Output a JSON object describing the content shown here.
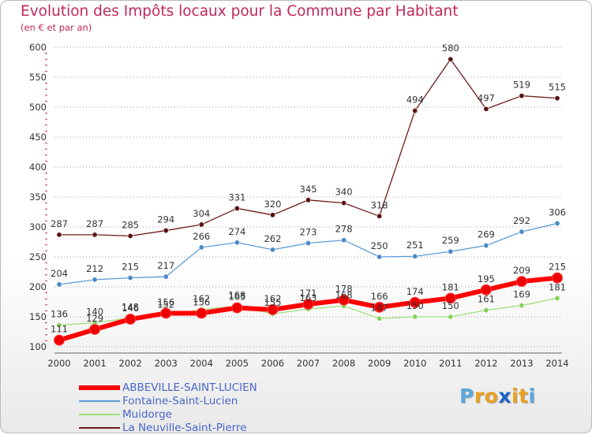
{
  "chart_data": {
    "type": "line",
    "title": "Evolution des Impôts locaux pour la Commune par Habitant",
    "subtitle": "(en € et par an)",
    "xlabel": "",
    "ylabel": "",
    "categories": [
      "2000",
      "2001",
      "2002",
      "2003",
      "2004",
      "2005",
      "2006",
      "2007",
      "2008",
      "2009",
      "2010",
      "2011",
      "2012",
      "2013",
      "2014"
    ],
    "ylim": [
      100,
      600
    ],
    "yticks": [
      100,
      150,
      200,
      250,
      300,
      350,
      400,
      450,
      500,
      550,
      600
    ],
    "grid": "horizontal-dotted",
    "legend_position": "bottom-left",
    "series": [
      {
        "name": "La Neuville-Saint-Pierre",
        "color": "#6e1a1a",
        "marker": "#5a1010",
        "values": [
          287,
          287,
          285,
          294,
          304,
          331,
          320,
          345,
          340,
          318,
          494,
          580,
          497,
          519,
          515
        ]
      },
      {
        "name": "Fontaine-Saint-Lucien",
        "color": "#5a9bd4",
        "marker": "#4a8ac8",
        "values": [
          204,
          212,
          215,
          217,
          266,
          274,
          262,
          273,
          278,
          250,
          251,
          259,
          269,
          292,
          306
        ]
      },
      {
        "name": "Muidorge",
        "color": "#9ee07a",
        "marker": "#86d05a",
        "values": [
          136,
          140,
          148,
          152,
          162,
          168,
          155,
          163,
          168,
          147,
          150,
          150,
          161,
          169,
          181
        ]
      },
      {
        "name": "ABBEVILLE-SAINT-LUCIEN",
        "color": "#ff0000",
        "marker": "#ee0000",
        "values": [
          111,
          129,
          146,
          156,
          156,
          165,
          162,
          171,
          178,
          166,
          174,
          181,
          195,
          209,
          215
        ]
      }
    ],
    "label_colors": {
      "text": "#333333"
    }
  },
  "legend": {
    "items": [
      {
        "label": "ABBEVILLE-SAINT-LUCIEN",
        "color": "#ff0000"
      },
      {
        "label": "Fontaine-Saint-Lucien",
        "color": "#5a9bd4"
      },
      {
        "label": "Muidorge",
        "color": "#9ee07a"
      },
      {
        "label": "La Neuville-Saint-Pierre",
        "color": "#6e1a1a"
      }
    ]
  },
  "logo": {
    "letters": [
      "P",
      "r",
      "o",
      "x",
      "i",
      "t",
      "i"
    ],
    "colors": [
      "#5aa7e0",
      "#e8a020",
      "#e8a020",
      "#1e64c8",
      "#e8a020",
      "#e8a020",
      "#5aa7e0"
    ]
  }
}
